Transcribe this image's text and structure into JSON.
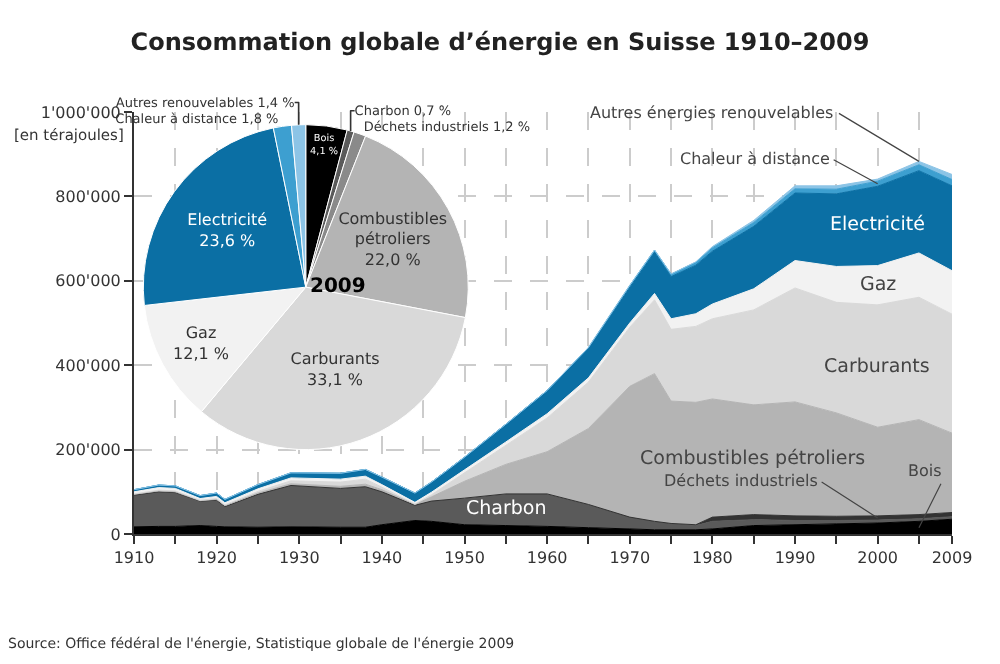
{
  "chart_data": [
    {
      "type": "area",
      "title": "Consommation globale d’énergie en Suisse 1910–2009",
      "ylabel": "[en térajoules]",
      "stacked": true,
      "grid": true,
      "legend": false,
      "x": [
        1910,
        1913,
        1915,
        1918,
        1920,
        1921,
        1925,
        1929,
        1935,
        1938,
        1940,
        1944,
        1946,
        1950,
        1955,
        1960,
        1965,
        1970,
        1973,
        1975,
        1978,
        1980,
        1985,
        1990,
        1995,
        2000,
        2005,
        2009
      ],
      "series": [
        {
          "name": "Bois",
          "color": "#000000",
          "values": [
            17000,
            18000,
            18000,
            20000,
            18000,
            17000,
            16000,
            17000,
            16000,
            16000,
            22000,
            32000,
            30000,
            22000,
            20000,
            18000,
            15000,
            12000,
            10000,
            10000,
            10000,
            12000,
            20000,
            22000,
            24000,
            26000,
            30000,
            35000
          ]
        },
        {
          "name": "Charbon",
          "color": "#5a5a5a",
          "values": [
            75000,
            82000,
            80000,
            58000,
            62000,
            48000,
            78000,
            98000,
            92000,
            96000,
            78000,
            36000,
            48000,
            63000,
            75000,
            77000,
            55000,
            28000,
            20000,
            15000,
            10000,
            18000,
            14000,
            10000,
            8000,
            7000,
            6000,
            6000
          ]
        },
        {
          "name": "Déchets industriels",
          "color": "#333333",
          "values": [
            0,
            0,
            0,
            0,
            0,
            0,
            0,
            0,
            0,
            0,
            0,
            0,
            0,
            0,
            0,
            0,
            0,
            0,
            0,
            0,
            2000,
            10000,
            12000,
            11000,
            10000,
            10000,
            10000,
            10000
          ]
        },
        {
          "name": "Combustibles pétroliers",
          "color": "#b4b4b4",
          "values": [
            2000,
            2000,
            2000,
            1000,
            2000,
            2000,
            3000,
            4000,
            5000,
            6000,
            5000,
            2000,
            10000,
            40000,
            70000,
            100000,
            180000,
            310000,
            350000,
            290000,
            290000,
            280000,
            260000,
            270000,
            245000,
            210000,
            225000,
            188000
          ]
        },
        {
          "name": "Carburants",
          "color": "#d9d9d9",
          "values": [
            1000,
            2000,
            2000,
            1000,
            2000,
            2000,
            4000,
            7000,
            10000,
            12000,
            6000,
            1000,
            5000,
            20000,
            45000,
            80000,
            110000,
            140000,
            175000,
            170000,
            180000,
            190000,
            225000,
            270000,
            262000,
            290000,
            290000,
            282000
          ]
        },
        {
          "name": "Gaz",
          "color": "#f2f2f2",
          "values": [
            5000,
            6000,
            6000,
            4000,
            5000,
            5000,
            6000,
            7000,
            7000,
            7000,
            6000,
            4000,
            6000,
            7000,
            8000,
            10000,
            10000,
            10000,
            15000,
            25000,
            30000,
            35000,
            50000,
            65000,
            85000,
            93000,
            105000,
            103000
          ]
        },
        {
          "name": "Electricité",
          "color": "#0b6fa4",
          "values": [
            5000,
            6000,
            6000,
            7000,
            8000,
            8000,
            10000,
            12000,
            14000,
            16000,
            18000,
            22000,
            24000,
            30000,
            42000,
            55000,
            70000,
            85000,
            98000,
            100000,
            115000,
            125000,
            148000,
            160000,
            172000,
            188000,
            195000,
            201000
          ]
        },
        {
          "name": "Chaleur à distance",
          "color": "#3d9fd0",
          "values": [
            0,
            0,
            0,
            0,
            0,
            0,
            0,
            0,
            0,
            0,
            0,
            0,
            0,
            0,
            0,
            0,
            2000,
            4000,
            5000,
            6000,
            7000,
            8000,
            9000,
            10000,
            11000,
            12000,
            14000,
            15000
          ]
        },
        {
          "name": "Autres énergies renouvelables",
          "color": "#8cc4e6",
          "values": [
            0,
            0,
            0,
            0,
            0,
            0,
            0,
            0,
            0,
            0,
            0,
            0,
            0,
            0,
            0,
            0,
            0,
            0,
            0,
            0,
            1000,
            3000,
            5000,
            7000,
            8000,
            5000,
            8000,
            12000
          ]
        }
      ],
      "xlim": [
        1910,
        2009
      ],
      "xticks": [
        1910,
        {
          "value": 1915,
          "label": null
        },
        1920,
        {
          "value": 1925,
          "label": null
        },
        1930,
        {
          "value": 1935,
          "label": null
        },
        1940,
        {
          "value": 1945,
          "label": null
        },
        1950,
        {
          "value": 1955,
          "label": null
        },
        1960,
        {
          "value": 1965,
          "label": null
        },
        1970,
        {
          "value": 1975,
          "label": null
        },
        1980,
        {
          "value": 1985,
          "label": null
        },
        1990,
        {
          "value": 1995,
          "label": null
        },
        2000,
        {
          "value": 2005,
          "label": null
        },
        2009
      ],
      "ylim": [
        0,
        1000000
      ],
      "yticks": [
        0,
        {
          "value": 200000,
          "label": "200'000"
        },
        {
          "value": 400000,
          "label": "400'000"
        },
        {
          "value": 600000,
          "label": "600'000"
        },
        {
          "value": 800000,
          "label": "800'000"
        },
        {
          "value": 1000000,
          "label": "1'000'000"
        }
      ],
      "annotations": [
        "Source: Office fédéral de l'énergie, Statistique globale de l'énergie 2009"
      ]
    },
    {
      "type": "pie",
      "title": "2009",
      "categories": [
        "Bois",
        "Charbon",
        "Déchets industriels",
        "Combustibles pétroliers",
        "Carburants",
        "Gaz",
        "Electricité",
        "Chaleur à distance",
        "Autres renouvelables"
      ],
      "values": [
        4.1,
        0.7,
        1.2,
        22.0,
        33.1,
        12.1,
        23.6,
        1.8,
        1.4
      ],
      "colors": [
        "#000000",
        "#5a5a5a",
        "#8a8a8a",
        "#b4b4b4",
        "#d9d9d9",
        "#f2f2f2",
        "#0b6fa4",
        "#3d9fd0",
        "#8cc4e6"
      ],
      "value_labels": [
        "4,1 %",
        "0,7 %",
        "1,2 %",
        "22,0 %",
        "33,1 %",
        "12,1 %",
        "23,6 %",
        "1,8 %",
        "1,4 %"
      ]
    }
  ]
}
